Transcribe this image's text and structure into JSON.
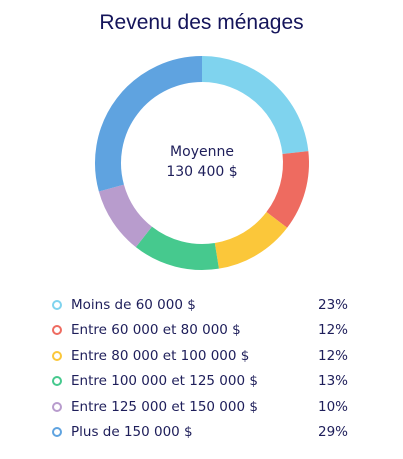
{
  "chart_data": {
    "type": "pie",
    "title": "Revenu des ménages",
    "center": {
      "label": "Moyenne",
      "value": "130 400 $"
    },
    "categories": [
      "Moins de 60 000 $",
      "Entre 60 000 et 80 000 $",
      "Entre 80 000 et 100 000 $",
      "Entre 100 000 et 125 000 $",
      "Entre 125 000 et 150 000 $",
      "Plus de 150 000 $"
    ],
    "values": [
      23,
      12,
      12,
      13,
      10,
      29
    ],
    "value_labels": [
      "23%",
      "12%",
      "12%",
      "13%",
      "10%",
      "29%"
    ],
    "colors": [
      "#7fd3ee",
      "#ee6b60",
      "#fbc73a",
      "#46c98e",
      "#b89ccd",
      "#5fa3e0"
    ],
    "legend": "bottom"
  }
}
